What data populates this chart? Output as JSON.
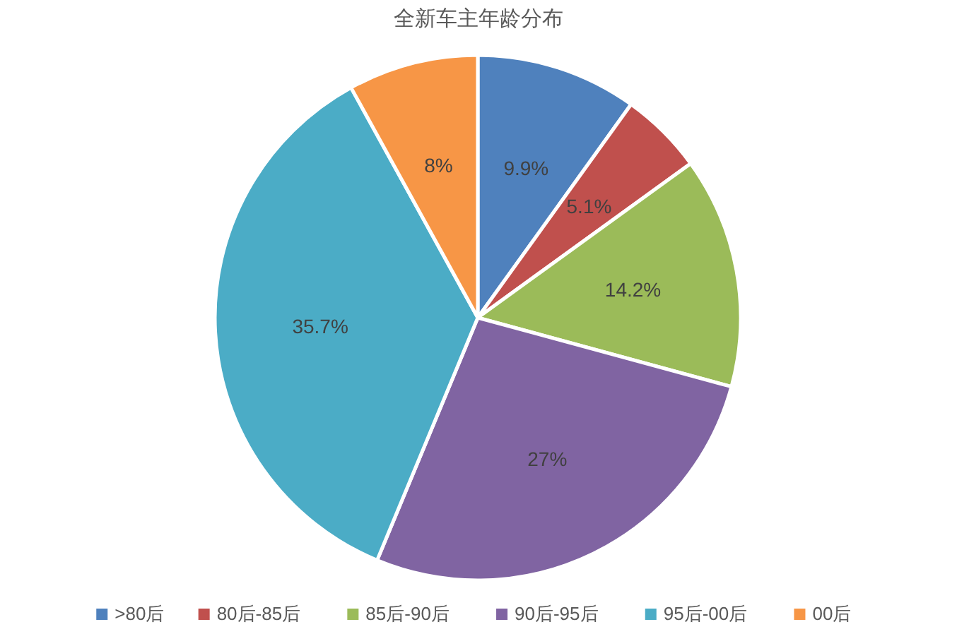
{
  "chart_data": {
    "type": "pie",
    "title": "全新车主年龄分布",
    "categories": [
      ">80后",
      "80后-85后",
      "85后-90后",
      "90后-95后",
      "95后-00后",
      "00后"
    ],
    "values": [
      9.9,
      5.1,
      14.2,
      27,
      35.7,
      8
    ],
    "colors": [
      "#4f81bd",
      "#c0504d",
      "#9bbb59",
      "#8064a2",
      "#4bacc6",
      "#f79646"
    ],
    "value_labels": [
      "9.9%",
      "5.1%",
      "14.2%",
      "27%",
      "35.7%",
      "8%"
    ],
    "legend": "bottom"
  }
}
